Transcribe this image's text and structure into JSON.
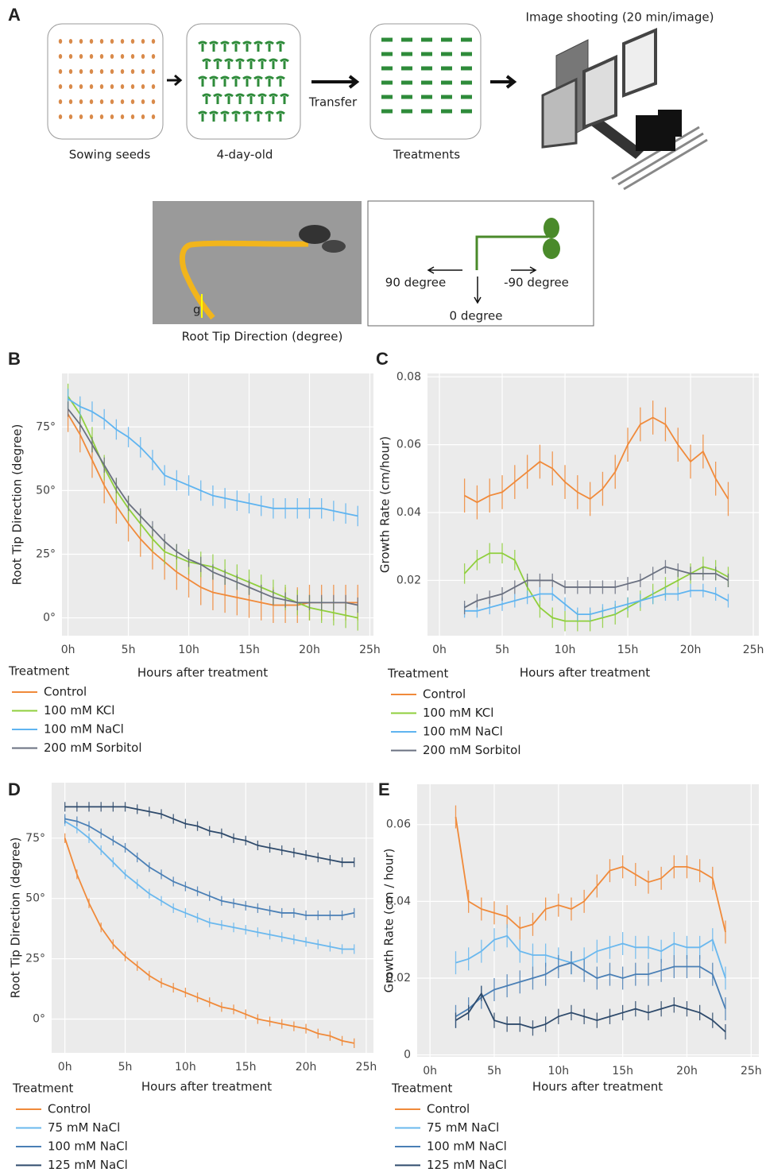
{
  "diagram": {
    "panel": "A",
    "steps": [
      "Sowing seeds",
      "4-day-old",
      "Treatments"
    ],
    "transfer": "Transfer",
    "imaging": "Image shooting (20 min/image)",
    "angle_labels": [
      "90 degree",
      "-90 degree",
      "0 degree"
    ],
    "g_label": "g",
    "photo_caption": "Root Tip Direction (degree)"
  },
  "chart_data": [
    {
      "type": "line",
      "panel": "B",
      "y_label": "Root Tip Direction (degree)",
      "x_label": "Hours after treatment",
      "legend_title": "Treatment",
      "grid": true,
      "x": [
        0,
        1,
        2,
        3,
        4,
        5,
        6,
        7,
        8,
        9,
        10,
        11,
        12,
        13,
        14,
        15,
        16,
        17,
        18,
        19,
        20,
        21,
        22,
        23,
        24
      ],
      "xlim": [
        -0.5,
        25.3
      ],
      "ylim": [
        -7,
        96
      ],
      "xticks": [
        {
          "value": 0,
          "label": "0h"
        },
        {
          "value": 5,
          "label": "5h"
        },
        {
          "value": 10,
          "label": "10h"
        },
        {
          "value": 15,
          "label": "15h"
        },
        {
          "value": 20,
          "label": "20h"
        },
        {
          "value": 25,
          "label": "25h"
        }
      ],
      "yticks": [
        {
          "value": 0,
          "label": "0°"
        },
        {
          "value": 25,
          "label": "25°"
        },
        {
          "value": 50,
          "label": "50°"
        },
        {
          "value": 75,
          "label": "75°"
        }
      ],
      "series": [
        {
          "name": "Control",
          "color": "#f08a3a",
          "error": 7,
          "values": [
            80,
            72,
            62,
            52,
            44,
            37,
            31,
            26,
            22,
            18,
            15,
            12,
            10,
            9,
            8,
            7,
            6,
            5,
            5,
            5,
            6,
            6,
            6,
            6,
            6
          ]
        },
        {
          "name": "100 mM KCl",
          "color": "#8fcf3c",
          "error": 5,
          "values": [
            87,
            80,
            70,
            59,
            50,
            43,
            37,
            31,
            26,
            24,
            22,
            21,
            20,
            18,
            16,
            14,
            12,
            10,
            8,
            6,
            4,
            3,
            2,
            1,
            0
          ]
        },
        {
          "name": "100 mM NaCl",
          "color": "#5fb4f0",
          "error": 4,
          "values": [
            86,
            83,
            81,
            78,
            74,
            71,
            67,
            62,
            56,
            54,
            52,
            50,
            48,
            47,
            46,
            45,
            44,
            43,
            43,
            43,
            43,
            43,
            42,
            41,
            40
          ]
        },
        {
          "name": "200 mM Sorbitol",
          "color": "#6a7080",
          "error": 3,
          "values": [
            82,
            76,
            68,
            60,
            52,
            45,
            40,
            35,
            30,
            26,
            23,
            21,
            18,
            16,
            14,
            12,
            10,
            8,
            7,
            6,
            6,
            6,
            6,
            6,
            5
          ]
        }
      ]
    },
    {
      "type": "line",
      "panel": "C",
      "y_label": "Growth Rate (cm/hour)",
      "x_label": "Hours after treatment",
      "legend_title": "Treatment",
      "grid": true,
      "x": [
        2,
        3,
        4,
        5,
        6,
        7,
        8,
        9,
        10,
        11,
        12,
        13,
        14,
        15,
        16,
        17,
        18,
        19,
        20,
        21,
        22,
        23
      ],
      "xlim": [
        -0.95,
        25.44
      ],
      "ylim": [
        0.0037,
        0.081
      ],
      "xticks": [
        {
          "value": 0,
          "label": "0h"
        },
        {
          "value": 5,
          "label": "5h"
        },
        {
          "value": 10,
          "label": "10h"
        },
        {
          "value": 15,
          "label": "15h"
        },
        {
          "value": 20,
          "label": "20h"
        },
        {
          "value": 25,
          "label": "25h"
        }
      ],
      "yticks": [
        0.02,
        0.04,
        0.06,
        0.08
      ],
      "series": [
        {
          "name": "Control",
          "color": "#f08a3a",
          "error": 0.005,
          "values": [
            0.045,
            0.043,
            0.045,
            0.046,
            0.049,
            0.052,
            0.055,
            0.053,
            0.049,
            0.046,
            0.044,
            0.047,
            0.052,
            0.06,
            0.066,
            0.068,
            0.066,
            0.06,
            0.055,
            0.058,
            0.05,
            0.044
          ]
        },
        {
          "name": "100 mM KCl",
          "color": "#8fcf3c",
          "error": 0.003,
          "values": [
            0.022,
            0.026,
            0.028,
            0.028,
            0.026,
            0.018,
            0.012,
            0.009,
            0.008,
            0.008,
            0.008,
            0.009,
            0.01,
            0.012,
            0.014,
            0.016,
            0.018,
            0.02,
            0.022,
            0.024,
            0.023,
            0.021
          ]
        },
        {
          "name": "100 mM NaCl",
          "color": "#5fb4f0",
          "error": 0.002,
          "values": [
            0.011,
            0.011,
            0.012,
            0.013,
            0.014,
            0.015,
            0.016,
            0.016,
            0.013,
            0.01,
            0.01,
            0.011,
            0.012,
            0.013,
            0.014,
            0.015,
            0.016,
            0.016,
            0.017,
            0.017,
            0.016,
            0.014
          ]
        },
        {
          "name": "200 mM Sorbitol",
          "color": "#6a7080",
          "error": 0.002,
          "values": [
            0.012,
            0.014,
            0.015,
            0.016,
            0.018,
            0.02,
            0.02,
            0.02,
            0.018,
            0.018,
            0.018,
            0.018,
            0.018,
            0.019,
            0.02,
            0.022,
            0.024,
            0.023,
            0.022,
            0.022,
            0.022,
            0.02
          ]
        }
      ]
    },
    {
      "type": "line",
      "panel": "D",
      "y_label": "Root Tip Direction (degree)",
      "x_label": "Hours after treatment",
      "legend_title": "Treatment",
      "grid": true,
      "x": [
        0,
        1,
        2,
        3,
        4,
        5,
        6,
        7,
        8,
        9,
        10,
        11,
        12,
        13,
        14,
        15,
        16,
        17,
        18,
        19,
        20,
        21,
        22,
        23,
        24
      ],
      "xlim": [
        -1.1,
        25.6
      ],
      "ylim": [
        -14,
        98
      ],
      "xticks": [
        {
          "value": 0,
          "label": "0h"
        },
        {
          "value": 5,
          "label": "5h"
        },
        {
          "value": 10,
          "label": "10h"
        },
        {
          "value": 15,
          "label": "15h"
        },
        {
          "value": 20,
          "label": "20h"
        },
        {
          "value": 25,
          "label": "25h"
        }
      ],
      "yticks": [
        {
          "value": 0,
          "label": "0°"
        },
        {
          "value": 25,
          "label": "25°"
        },
        {
          "value": 50,
          "label": "50°"
        },
        {
          "value": 75,
          "label": "75°"
        }
      ],
      "series": [
        {
          "name": "Control",
          "color": "#f08a3a",
          "error": 2,
          "values": [
            75,
            60,
            48,
            38,
            31,
            26,
            22,
            18,
            15,
            13,
            11,
            9,
            7,
            5,
            4,
            2,
            0,
            -1,
            -2,
            -3,
            -4,
            -6,
            -7,
            -9,
            -10
          ]
        },
        {
          "name": "75 mM NaCl",
          "color": "#6ab8ee",
          "error": 2,
          "values": [
            82,
            79,
            75,
            70,
            65,
            60,
            56,
            52,
            49,
            46,
            44,
            42,
            40,
            39,
            38,
            37,
            36,
            35,
            34,
            33,
            32,
            31,
            30,
            29,
            29
          ]
        },
        {
          "name": "100 mM NaCl",
          "color": "#4a7fb5",
          "error": 2,
          "values": [
            83,
            82,
            80,
            77,
            74,
            71,
            67,
            63,
            60,
            57,
            55,
            53,
            51,
            49,
            48,
            47,
            46,
            45,
            44,
            44,
            43,
            43,
            43,
            43,
            44
          ]
        },
        {
          "name": "125 mM NaCl",
          "color": "#2e4a6b",
          "error": 2,
          "values": [
            88,
            88,
            88,
            88,
            88,
            88,
            87,
            86,
            85,
            83,
            81,
            80,
            78,
            77,
            75,
            74,
            72,
            71,
            70,
            69,
            68,
            67,
            66,
            65,
            65
          ]
        }
      ]
    },
    {
      "type": "line",
      "panel": "E",
      "y_label": "Growth Rate (cm / hour)",
      "x_label": "Hours after treatment",
      "legend_title": "Treatment",
      "grid": true,
      "x": [
        2,
        3,
        4,
        5,
        6,
        7,
        8,
        9,
        10,
        11,
        12,
        13,
        14,
        15,
        16,
        17,
        18,
        19,
        20,
        21,
        22,
        23
      ],
      "xlim": [
        -1.0,
        25.6
      ],
      "ylim": [
        -0.0005,
        0.0705
      ],
      "xticks": [
        {
          "value": 0,
          "label": "0h"
        },
        {
          "value": 5,
          "label": "5h"
        },
        {
          "value": 10,
          "label": "10h"
        },
        {
          "value": 15,
          "label": "15h"
        },
        {
          "value": 20,
          "label": "20h"
        },
        {
          "value": 25,
          "label": "25h"
        }
      ],
      "yticks": [
        0,
        0.02,
        0.04,
        0.06
      ],
      "series": [
        {
          "name": "Control",
          "color": "#f08a3a",
          "error": 0.003,
          "values": [
            0.062,
            0.04,
            0.038,
            0.037,
            0.036,
            0.033,
            0.034,
            0.038,
            0.039,
            0.038,
            0.04,
            0.044,
            0.048,
            0.049,
            0.047,
            0.045,
            0.046,
            0.049,
            0.049,
            0.048,
            0.046,
            0.032
          ]
        },
        {
          "name": "75 mM NaCl",
          "color": "#6ab8ee",
          "error": 0.003,
          "values": [
            0.024,
            0.025,
            0.027,
            0.03,
            0.031,
            0.027,
            0.026,
            0.026,
            0.025,
            0.024,
            0.025,
            0.027,
            0.028,
            0.029,
            0.028,
            0.028,
            0.027,
            0.029,
            0.028,
            0.028,
            0.03,
            0.02
          ]
        },
        {
          "name": "100 mM NaCl",
          "color": "#4a7fb5",
          "error": 0.003,
          "values": [
            0.01,
            0.012,
            0.015,
            0.017,
            0.018,
            0.019,
            0.02,
            0.021,
            0.023,
            0.024,
            0.022,
            0.02,
            0.021,
            0.02,
            0.021,
            0.021,
            0.022,
            0.023,
            0.023,
            0.023,
            0.021,
            0.012
          ]
        },
        {
          "name": "125 mM NaCl",
          "color": "#2e4a6b",
          "error": 0.002,
          "values": [
            0.009,
            0.011,
            0.016,
            0.009,
            0.008,
            0.008,
            0.007,
            0.008,
            0.01,
            0.011,
            0.01,
            0.009,
            0.01,
            0.011,
            0.012,
            0.011,
            0.012,
            0.013,
            0.012,
            0.011,
            0.009,
            0.006
          ]
        }
      ]
    }
  ]
}
